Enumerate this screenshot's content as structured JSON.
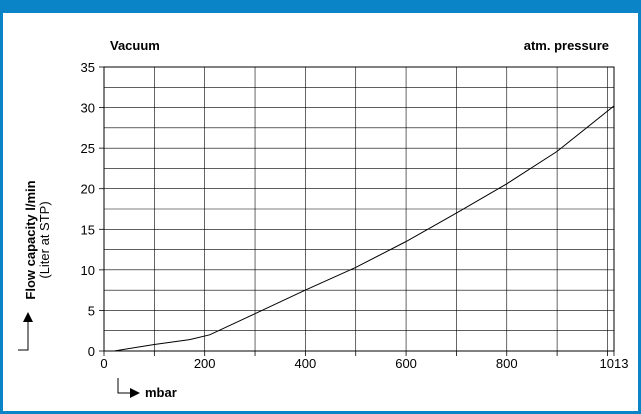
{
  "chart_data": {
    "type": "line",
    "corner_labels": {
      "left": "Vacuum",
      "right": "atm.  pressure"
    },
    "xlabel": "mbar",
    "ylabel": "Flow capacity l/min",
    "ylabel_sub": "(Liter at STP)",
    "x_ticks": [
      0,
      200,
      400,
      600,
      800,
      1013
    ],
    "x_tick_labels": [
      "0",
      "200",
      "400",
      "600",
      "800",
      "1013"
    ],
    "y_ticks": [
      0,
      5,
      10,
      15,
      20,
      25,
      30,
      35
    ],
    "xlim": [
      0,
      1013
    ],
    "ylim": [
      0,
      35
    ],
    "grid": true,
    "series": [
      {
        "x": [
          20,
          100,
          170,
          210,
          300,
          400,
          500,
          600,
          700,
          800,
          900,
          1013
        ],
        "values": [
          0.0,
          0.8,
          1.4,
          2.0,
          4.6,
          7.5,
          10.3,
          13.5,
          17.0,
          20.6,
          24.6,
          30.2
        ]
      }
    ],
    "colors": {
      "line": "#000000",
      "grid": "#000000",
      "frame": "#0a84c6"
    }
  }
}
